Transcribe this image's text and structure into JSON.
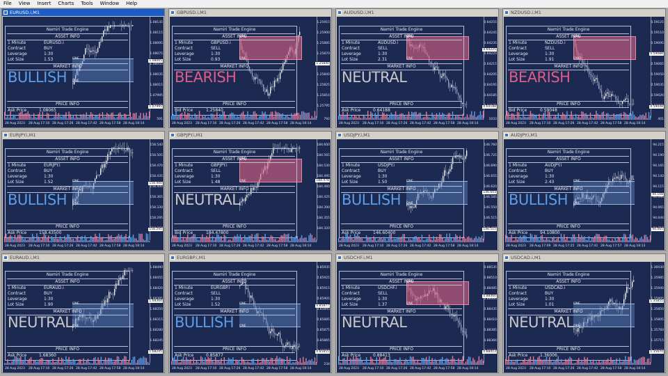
{
  "menu": [
    "File",
    "View",
    "Insert",
    "Charts",
    "Tools",
    "Window",
    "Help"
  ],
  "panel_labels": {
    "title": "Namiri Trade Engine",
    "asset_info": "ASSET INFO",
    "timeframe": "1 Minute",
    "contract": "Contract",
    "leverage": "Leverage",
    "lot_size": "Lot Size",
    "market_info": "MARKET INFO",
    "price_info": "PRICE INFO"
  },
  "zone_label": "ONE",
  "colors": {
    "bull": "#5d9de6",
    "bear": "#e05c8c",
    "neutral": "#c8c8c8",
    "chart_bg": "#1c2a52",
    "active_title": "#1a5cc8"
  },
  "charts": [
    {
      "title": "EURUSD.i,M1",
      "symbol": "EURUSD.i",
      "contract": "BUY",
      "leverage": "1:30",
      "lot": "1.53",
      "signal": "BULLISH",
      "price_label": "Ask Price",
      "price": "1.08065",
      "zone": "bull",
      "zone_level": 0.3,
      "trend": "up",
      "active": true,
      "ticks": [
        "1.08135",
        "1.08115",
        "1.08095",
        "1.08075",
        "1.08055",
        "1.08035",
        "1.08015",
        "1.07995",
        "1.07975"
      ],
      "tag": "1.08065",
      "tag_pos": 0.45,
      "tag2": "1.07995",
      "vol_ticks": [
        "591",
        "0"
      ],
      "times": [
        "28 Aug 2023",
        "28 Aug 17:10",
        "28 Aug 17:26",
        "28 Aug 17:42",
        "28 Aug 17:58",
        "28 Aug 18:14"
      ]
    },
    {
      "title": "GBPUSD.i,M1",
      "symbol": "GBPUSD.i",
      "contract": "SELL",
      "leverage": "1:30",
      "lot": "0.93",
      "signal": "BEARISH",
      "price_label": "Bid Price",
      "price": "1.25840",
      "zone": "bear",
      "zone_level": 0.72,
      "trend": "vdown",
      "active": false,
      "ticks": [
        "1.25915",
        "1.25900",
        "1.25885",
        "1.25870",
        "1.25855",
        "1.25840",
        "1.25825",
        "1.25810",
        "1.25795"
      ],
      "tag": "1.25840",
      "tag_pos": 0.48,
      "tag2": "",
      "vol_ticks": [
        "792",
        "0"
      ],
      "times": [
        "28 Aug 2023",
        "28 Aug 17:10",
        "28 Aug 17:26",
        "28 Aug 17:42",
        "28 Aug 17:58",
        "28 Aug 18:14"
      ]
    },
    {
      "title": "AUDUSD.i,M1",
      "symbol": "AUDUSD.i",
      "contract": "SELL",
      "leverage": "1:30",
      "lot": "2.31",
      "signal": "NEUTRAL",
      "price_label": "Ask Price",
      "price": "0.64188",
      "zone": "bear",
      "zone_level": 0.78,
      "trend": "down",
      "active": false,
      "ticks": [
        "0.64255",
        "0.64245",
        "0.64235",
        "0.64225",
        "0.64215",
        "0.64205",
        "0.64195",
        "0.64185",
        "0.64175"
      ],
      "tag": "0.64225",
      "tag_pos": 0.33,
      "tag2": "0.64188",
      "vol_ticks": [
        "1033",
        "0"
      ],
      "times": [
        "28 Aug 2023",
        "28 Aug 17:10",
        "28 Aug 17:26",
        "28 Aug 17:42",
        "28 Aug 17:58",
        "28 Aug 18:14"
      ]
    },
    {
      "title": "NZDUSD.i,M1",
      "symbol": "NZDUSD.i",
      "contract": "SELL",
      "leverage": "1:30",
      "lot": "1.91",
      "signal": "BEARISH",
      "price_label": "Bid Price",
      "price": "0.59048",
      "zone": "bear",
      "zone_level": 0.75,
      "trend": "down",
      "active": false,
      "ticks": [
        "0.59125",
        "0.59110",
        "0.59095",
        "0.59080",
        "0.59065",
        "0.59050",
        "0.59035",
        "0.59020",
        "0.59005"
      ],
      "tag": "0.59088",
      "tag_pos": 0.38,
      "tag2": "0.59048",
      "vol_ticks": [
        "401",
        "0"
      ],
      "times": [
        "28 Aug 2023",
        "28 Aug 17:10",
        "28 Aug 17:26",
        "28 Aug 17:42",
        "28 Aug 17:58",
        "28 Aug 18:14"
      ]
    },
    {
      "title": "EURJPY.i,M1",
      "symbol": "EURJPY.i",
      "contract": "BUY",
      "leverage": "1:30",
      "lot": "1.52",
      "signal": "BULLISH",
      "price_label": "Ask Price",
      "price": "158.43500",
      "zone": "bull",
      "zone_level": 0.4,
      "trend": "up",
      "active": false,
      "ticks": [
        "158.540",
        "158.505",
        "158.470",
        "158.435",
        "158.400",
        "158.365",
        "158.330",
        "158.295",
        "158.260"
      ],
      "tag": "158.400",
      "tag_pos": 0.45,
      "tag2": "158.295",
      "vol_ticks": [
        "",
        ""
      ],
      "times": [
        "28 Aug 2023",
        "28 Aug 17:10",
        "28 Aug 17:26",
        "28 Aug 17:42",
        "28 Aug 17:58",
        "28 Aug 18:14"
      ]
    },
    {
      "title": "GBPJPY.i,M1",
      "symbol": "GBPJPY.i",
      "contract": "SELL",
      "leverage": "1:30",
      "lot": "1.48",
      "signal": "NEUTRAL",
      "price_label": "Bid Price",
      "price": "184.47800",
      "zone": "bear",
      "zone_level": 0.7,
      "trend": "up",
      "active": false,
      "ticks": [
        "184.600",
        "184.565",
        "184.530",
        "184.495",
        "184.460",
        "184.425",
        "184.390",
        "184.355",
        "184.320"
      ],
      "tag": "184.478",
      "tag_pos": 0.42,
      "tag2": "",
      "vol_ticks": [
        "",
        ""
      ],
      "times": [
        "28 Aug 2023",
        "28 Aug 17:10",
        "28 Aug 17:26",
        "28 Aug 17:42",
        "28 Aug 17:58",
        "28 Aug 18:14"
      ]
    },
    {
      "title": "USDJPY.i,M1",
      "symbol": "USDJPY.i",
      "contract": "BUY",
      "leverage": "1:30",
      "lot": "1.50",
      "signal": "BULLISH",
      "price_label": "Ask Price",
      "price": "146.60400",
      "zone": "bull",
      "zone_level": 0.45,
      "trend": "up",
      "active": false,
      "ticks": [
        "146.760",
        "146.725",
        "146.690",
        "146.655",
        "146.620",
        "146.585",
        "146.550",
        "146.515",
        "146.480"
      ],
      "tag": "146.603",
      "tag_pos": 0.55,
      "tag2": "146.515",
      "vol_ticks": [
        "",
        ""
      ],
      "times": [
        "28 Aug 2023",
        "28 Aug 17:10",
        "28 Aug 17:26",
        "28 Aug 17:42",
        "28 Aug 17:58",
        "28 Aug 18:14"
      ]
    },
    {
      "title": "AUDJPY.i,M1",
      "symbol": "AUDJPY.i",
      "contract": "BUY",
      "leverage": "1:30",
      "lot": "2.43",
      "signal": "BULLISH",
      "price_label": "Ask Price",
      "price": "94.10800",
      "zone": "bull",
      "zone_level": 0.4,
      "trend": "flat",
      "active": false,
      "ticks": [
        "94.215",
        "94.190",
        "94.165",
        "94.140",
        "94.115",
        "94.090",
        "94.065",
        "94.040",
        "94.015"
      ],
      "tag": "94.108",
      "tag_pos": 0.57,
      "tag2": "94.065",
      "vol_ticks": [
        "",
        ""
      ],
      "times": [
        "28 Aug 2023",
        "28 Aug 17:09",
        "28 Aug 17:25",
        "28 Aug 17:41",
        "28 Aug 17:57",
        "28 Aug 18:13"
      ]
    },
    {
      "title": "EURAUD.i,M1",
      "symbol": "EURAUD.i",
      "contract": "BUY",
      "leverage": "1:30",
      "lot": "1.90",
      "signal": "NEUTRAL",
      "price_label": "Ask Price",
      "price": "1.68360",
      "zone": "bull",
      "zone_level": 0.38,
      "trend": "up",
      "active": false,
      "ticks": [
        "1.68490",
        "1.68455",
        "1.68420",
        "1.68385",
        "1.68350",
        "1.68315",
        "1.68280",
        "1.68245",
        "1.68210"
      ],
      "tag": "1.68360",
      "tag_pos": 0.4,
      "tag2": "1.68245",
      "vol_ticks": [
        "",
        ""
      ],
      "times": [
        "28 Aug 2023",
        "28 Aug 17:10",
        "28 Aug 17:26",
        "28 Aug 17:42",
        "28 Aug 17:58",
        "28 Aug 18:14"
      ]
    },
    {
      "title": "EURGBP.i,M1",
      "symbol": "EURGBP.i",
      "contract": "SELL",
      "leverage": "1:30",
      "lot": "1.52",
      "signal": "BULLISH",
      "price_label": "Ask Price",
      "price": "0.85877",
      "zone": "bull",
      "zone_level": 0.3,
      "trend": "down",
      "active": false,
      "ticks": [
        "0.85935",
        "0.85925",
        "0.85915",
        "0.85905",
        "0.85895",
        "0.85885",
        "0.85875",
        "0.85865",
        "0.85855"
      ],
      "tag": "0.85877",
      "tag_pos": 0.45,
      "tag2": "0.85855",
      "vol_ticks": [
        "234",
        "0"
      ],
      "times": [
        "28 Aug 2023",
        "28 Aug 17:10",
        "28 Aug 17:26",
        "28 Aug 17:42",
        "28 Aug 17:58",
        "28 Aug 18:14"
      ]
    },
    {
      "title": "USDCHF.i,M1",
      "symbol": "USDCHF.i",
      "contract": "SELL",
      "leverage": "1:30",
      "lot": "1.37",
      "signal": "NEUTRAL",
      "price_label": "Ask Price",
      "price": "0.88413",
      "zone": "bear",
      "zone_level": 0.65,
      "trend": "down",
      "active": false,
      "ticks": [
        "0.88535",
        "0.88510",
        "0.88485",
        "0.88460",
        "0.88435",
        "0.88410",
        "0.88385",
        "0.88360",
        "0.88335"
      ],
      "tag": "0.88460",
      "tag_pos": 0.35,
      "tag2": "0.88413",
      "vol_ticks": [
        "",
        ""
      ],
      "times": [
        "28 Aug 2023",
        "28 Aug 17:10",
        "28 Aug 17:26",
        "28 Aug 17:42",
        "28 Aug 17:58",
        "28 Aug 18:14"
      ]
    },
    {
      "title": "USDCAD.i,M1",
      "symbol": "USDCAD.i",
      "contract": "BUY",
      "leverage": "1:30",
      "lot": "1.01",
      "signal": "NEUTRAL",
      "price_label": "Ask Price",
      "price": "1.36006",
      "zone": "bull",
      "zone_level": 0.42,
      "trend": "up",
      "active": false,
      "ticks": [
        "1.36030",
        "1.35985",
        "1.35940",
        "1.35895",
        "1.35850",
        "1.35805",
        "1.35760",
        "1.35715",
        "1.35670"
      ],
      "tag": "1.35855",
      "tag_pos": 0.4,
      "tag2": "1.35670",
      "vol_ticks": [
        "",
        ""
      ],
      "times": [
        "28 Aug 2023",
        "28 Aug 17:10",
        "28 Aug 17:26",
        "28 Aug 17:42",
        "28 Aug 17:58",
        "28 Aug 18:14"
      ]
    }
  ]
}
